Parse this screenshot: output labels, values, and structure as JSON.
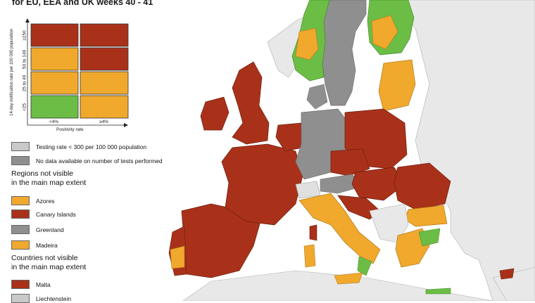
{
  "title": "for EU, EEA and UK weeks 40 - 41",
  "colors": {
    "red": "#a9311a",
    "orange": "#f0a92d",
    "green": "#6cbd45",
    "dark_grey": "#8f8f8f",
    "light_grey": "#c9c9c9",
    "sea": "#ffffff",
    "non_eu": "#e8e8e8"
  },
  "matrix": {
    "y_axis_label": "14-day notification rate per 100 000 population",
    "x_axis_label": "Positivity rate",
    "y_ticks": [
      "≥150",
      "50 to 149",
      "25 to 49",
      "<25"
    ],
    "x_ticks": [
      "<4%",
      "≥4%"
    ],
    "cells": [
      [
        "red",
        "red"
      ],
      [
        "orange",
        "red"
      ],
      [
        "orange",
        "orange"
      ],
      [
        "green",
        "orange"
      ]
    ]
  },
  "legend": {
    "testing_low": "Testing rate < 300 per 100 000 population",
    "no_data": "No data available on number of tests performed",
    "regions_heading": "Regions not visible\nin the main map extent",
    "regions": [
      {
        "label": "Azores",
        "color": "orange"
      },
      {
        "label": "Canary Islands",
        "color": "red"
      },
      {
        "label": "Greenland",
        "color": "dark_grey"
      },
      {
        "label": "Madeira",
        "color": "orange"
      }
    ],
    "countries_heading": "Countries not visible\nin the main map extent",
    "countries": [
      {
        "label": "Malta",
        "color": "red"
      },
      {
        "label": "Liechtenstein",
        "color": "light_grey"
      }
    ]
  }
}
